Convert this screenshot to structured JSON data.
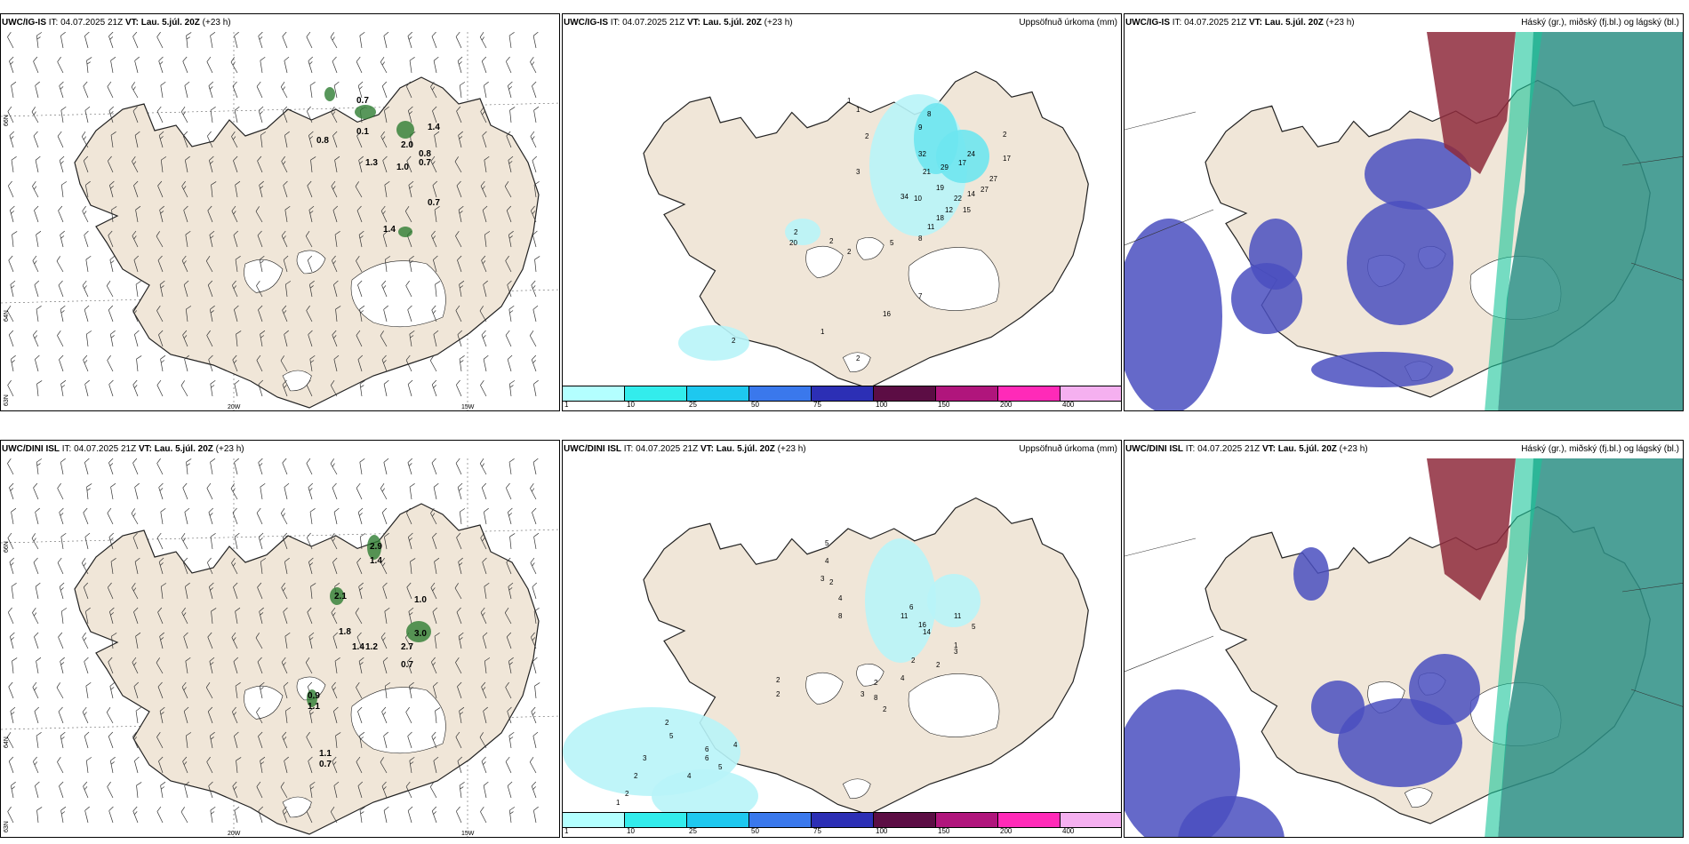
{
  "panels": [
    {
      "id": "p1",
      "model": "UWC/IG-IS",
      "it_label": "IT:",
      "it": "04.07.2025 21Z",
      "vt_label": "VT:",
      "vt": "Lau. 5.júl. 20Z",
      "lead": "(+23 h)",
      "right": "",
      "type": "wind",
      "values": [
        "0.8",
        "0.7",
        "0.1",
        "2.0",
        "1.4",
        "0.8",
        "0.7",
        "1.3",
        "1.0",
        "0.7",
        "1.4"
      ],
      "grid": {
        "lat_labels": [
          "66N",
          "64N",
          "63N"
        ],
        "lon_labels": [
          "20W",
          "15W"
        ]
      }
    },
    {
      "id": "p2",
      "model": "UWC/IG-IS",
      "it_label": "IT:",
      "it": "04.07.2025 21Z",
      "vt_label": "VT:",
      "vt": "Lau. 5.júl. 20Z",
      "lead": "(+23 h)",
      "right": "Uppsöfnuð úrkoma (mm)",
      "type": "precip",
      "values": [
        "1",
        "1",
        "2",
        "9",
        "8",
        "32",
        "21",
        "29",
        "17",
        "24",
        "17",
        "27",
        "2",
        "19",
        "34",
        "10",
        "22",
        "14",
        "27",
        "12",
        "15",
        "18",
        "11",
        "8",
        "3",
        "2",
        "2",
        "20",
        "5",
        "16",
        "7",
        "2",
        "1",
        "2",
        "2"
      ]
    },
    {
      "id": "p3",
      "model": "UWC/IG-IS",
      "it_label": "IT:",
      "it": "04.07.2025 21Z",
      "vt_label": "VT:",
      "vt": "Lau. 5.júl. 20Z",
      "lead": "(+23 h)",
      "right": "Háský (gr.), miðský (fj.bl.) og lágský (bl.)",
      "type": "cloud"
    },
    {
      "id": "p4",
      "model": "UWC/DINI ISL",
      "it_label": "IT:",
      "it": "04.07.2025 21Z",
      "vt_label": "VT:",
      "vt": "Lau. 5.júl. 20Z",
      "lead": "(+23 h)",
      "right": "",
      "type": "wind",
      "values": [
        "2.9",
        "1.4",
        "2.1",
        "1.0",
        "1.8",
        "1.4",
        "1.2",
        "2.7",
        "3.0",
        "0.7",
        "0.9",
        "1.1",
        "1.1",
        "0.7"
      ],
      "grid": {
        "lat_labels": [
          "66N",
          "64N",
          "63N"
        ],
        "lon_labels": [
          "20W",
          "15W"
        ]
      }
    },
    {
      "id": "p5",
      "model": "UWC/DINI ISL",
      "it_label": "IT:",
      "it": "04.07.2025 21Z",
      "vt_label": "VT:",
      "vt": "Lau. 5.júl. 20Z",
      "lead": "(+23 h)",
      "right": "Uppsöfnuð úrkoma (mm)",
      "type": "precip",
      "values": [
        "5",
        "4",
        "3",
        "2",
        "4",
        "8",
        "11",
        "6",
        "16",
        "14",
        "11",
        "5",
        "1",
        "3",
        "2",
        "2",
        "4",
        "2",
        "3",
        "8",
        "2",
        "2",
        "2",
        "4",
        "5",
        "6",
        "6",
        "4",
        "2",
        "5",
        "3",
        "2",
        "2",
        "1"
      ]
    },
    {
      "id": "p6",
      "model": "UWC/DINI ISL",
      "it_label": "IT:",
      "it": "04.07.2025 21Z",
      "vt_label": "VT:",
      "vt": "Lau. 5.júl. 20Z",
      "lead": "(+23 h)",
      "right": "Háský (gr.), miðský (fj.bl.) og lágský (bl.)",
      "type": "cloud"
    }
  ],
  "colorbar": {
    "ticks": [
      "1",
      "10",
      "25",
      "50",
      "75",
      "100",
      "150",
      "200",
      "400"
    ],
    "colors": [
      "#b3ffff",
      "#33ecec",
      "#1ec8ef",
      "#3a78ec",
      "#2c2fb5",
      "#5c0d44",
      "#b0157c",
      "#ff2ab8",
      "#f5b0f0"
    ]
  },
  "colors": {
    "land": "#f0e6d8",
    "coast": "#222222",
    "precip_light": "#b8f4f8",
    "precip_mid": "#6ee6f0",
    "low_cloud": "#4a4fc0",
    "mid_cloud": "#2d8f85",
    "high_cloud": "#8e2a3c"
  }
}
